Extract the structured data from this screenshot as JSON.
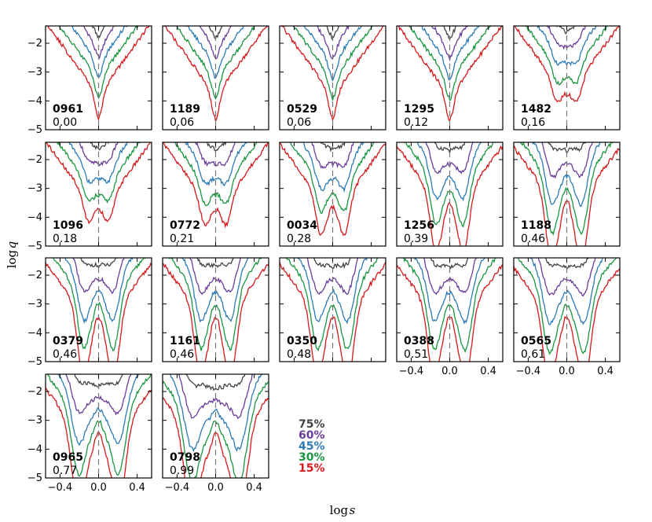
{
  "chart_data": {
    "type": "line",
    "xlabel": "log s",
    "ylabel": "log q",
    "xlim": [
      -0.55,
      0.55
    ],
    "ylim": [
      -5,
      -1.4
    ],
    "xticks": [
      -0.4,
      0.0,
      0.4
    ],
    "xtick_labels": [
      "−0.4",
      "0.0",
      "0.4"
    ],
    "yticks": [
      -2,
      -3,
      -4,
      -5
    ],
    "ytick_labels": [
      "−2",
      "−3",
      "−4",
      "−5"
    ],
    "reference_line_x": 0.0,
    "legend": [
      {
        "label": "75%",
        "color": "#444444"
      },
      {
        "label": "60%",
        "color": "#6a3d9a"
      },
      {
        "label": "45%",
        "color": "#2c7bb6"
      },
      {
        "label": "30%",
        "color": "#1a9641"
      },
      {
        "label": "15%",
        "color": "#d7191c"
      }
    ],
    "panels": [
      {
        "id": "0961",
        "value": "0.00"
      },
      {
        "id": "1189",
        "value": "0.06"
      },
      {
        "id": "0529",
        "value": "0.06"
      },
      {
        "id": "1295",
        "value": "0.12"
      },
      {
        "id": "1482",
        "value": "0.16"
      },
      {
        "id": "1096",
        "value": "0.18"
      },
      {
        "id": "0772",
        "value": "0.21"
      },
      {
        "id": "0034",
        "value": "0.28"
      },
      {
        "id": "1256",
        "value": "0.39"
      },
      {
        "id": "1188",
        "value": "0.46"
      },
      {
        "id": "0379",
        "value": "0.46"
      },
      {
        "id": "1161",
        "value": "0.46"
      },
      {
        "id": "0350",
        "value": "0.48"
      },
      {
        "id": "0388",
        "value": "0.51"
      },
      {
        "id": "0565",
        "value": "0.61"
      },
      {
        "id": "0965",
        "value": "0.77"
      },
      {
        "id": "0798",
        "value": "0.99"
      }
    ]
  }
}
